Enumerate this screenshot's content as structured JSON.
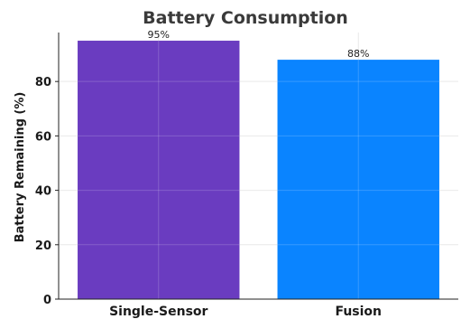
{
  "chart_data": {
    "type": "bar",
    "title": "Battery Consumption",
    "xlabel": "",
    "ylabel": "Battery Remaining (%)",
    "categories": [
      "Single-Sensor",
      "Fusion"
    ],
    "values": [
      95,
      88
    ],
    "data_labels": [
      "95%",
      "88%"
    ],
    "colors": [
      "#6a3cc0",
      "#0a84ff"
    ],
    "ylim": [
      0,
      98
    ],
    "yticks": [
      0,
      20,
      40,
      60,
      80
    ],
    "grid": true,
    "legend": "none"
  }
}
